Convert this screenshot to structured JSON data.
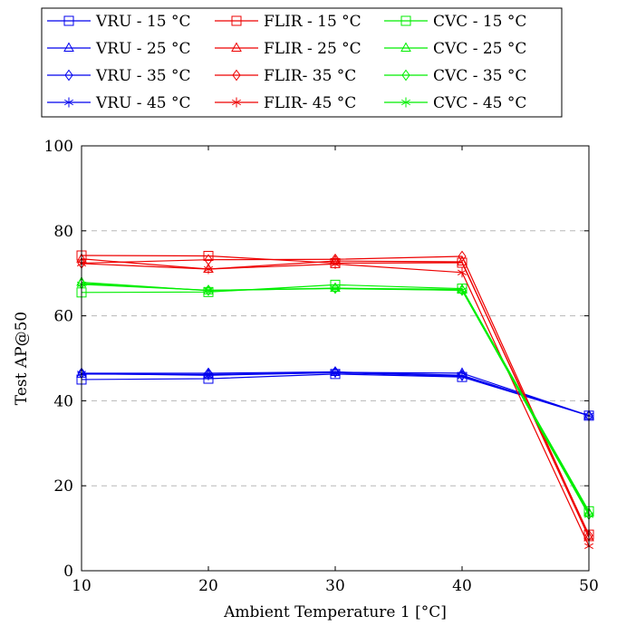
{
  "chart_data": {
    "type": "line",
    "title": "",
    "xlabel": "Ambient Temperature 1 [°C]",
    "ylabel": "Test AP@50",
    "x": [
      10,
      20,
      30,
      40,
      50
    ],
    "xlim": [
      10,
      50
    ],
    "ylim": [
      0,
      100
    ],
    "xticks": [
      "10",
      "20",
      "30",
      "40",
      "50"
    ],
    "yticks": [
      "0",
      "20",
      "40",
      "60",
      "80",
      "100"
    ],
    "grid": "horizontal-dashed",
    "legend_placement": "top",
    "colors": {
      "VRU": "#0000ee",
      "FLIR": "#ee0000",
      "CVC": "#00ee00"
    },
    "series": [
      {
        "name": "VRU - 15 °C",
        "group": "VRU",
        "marker": "square",
        "values": [
          45.0,
          45.2,
          46.3,
          45.6,
          36.5
        ]
      },
      {
        "name": "VRU - 25 °C",
        "group": "VRU",
        "marker": "triangle",
        "values": [
          46.3,
          46.2,
          46.7,
          46.5,
          36.5
        ]
      },
      {
        "name": "VRU - 35 °C",
        "group": "VRU",
        "marker": "diamond",
        "values": [
          46.5,
          46.5,
          46.8,
          46.0,
          36.5
        ]
      },
      {
        "name": "VRU - 45 °C",
        "group": "VRU",
        "marker": "star",
        "values": [
          46.4,
          46.0,
          46.6,
          45.8,
          36.5
        ]
      },
      {
        "name": "FLIR - 15 °C",
        "group": "FLIR",
        "marker": "square",
        "values": [
          74.2,
          74.1,
          72.4,
          72.5,
          8.5
        ]
      },
      {
        "name": "FLIR - 25 °C",
        "group": "FLIR",
        "marker": "triangle",
        "values": [
          73.4,
          71.0,
          72.9,
          72.7,
          7.8
        ]
      },
      {
        "name": "FLIR- 35 °C",
        "group": "FLIR",
        "marker": "diamond",
        "values": [
          72.4,
          73.2,
          73.3,
          74.0,
          8.3
        ]
      },
      {
        "name": "FLIR- 45 °C",
        "group": "FLIR",
        "marker": "star",
        "values": [
          72.3,
          71.0,
          72.2,
          70.2,
          5.8
        ]
      },
      {
        "name": "CVC - 15 °C",
        "group": "CVC",
        "marker": "square",
        "values": [
          65.5,
          65.6,
          67.3,
          66.4,
          14.0
        ]
      },
      {
        "name": "CVC - 25 °C",
        "group": "CVC",
        "marker": "triangle",
        "values": [
          67.9,
          65.9,
          66.5,
          66.2,
          13.6
        ]
      },
      {
        "name": "CVC - 35 °C",
        "group": "CVC",
        "marker": "diamond",
        "values": [
          67.6,
          66.0,
          66.5,
          66.0,
          13.3
        ]
      },
      {
        "name": "CVC - 45 °C",
        "group": "CVC",
        "marker": "star",
        "values": [
          67.4,
          66.0,
          66.4,
          66.0,
          13.1
        ]
      }
    ]
  }
}
